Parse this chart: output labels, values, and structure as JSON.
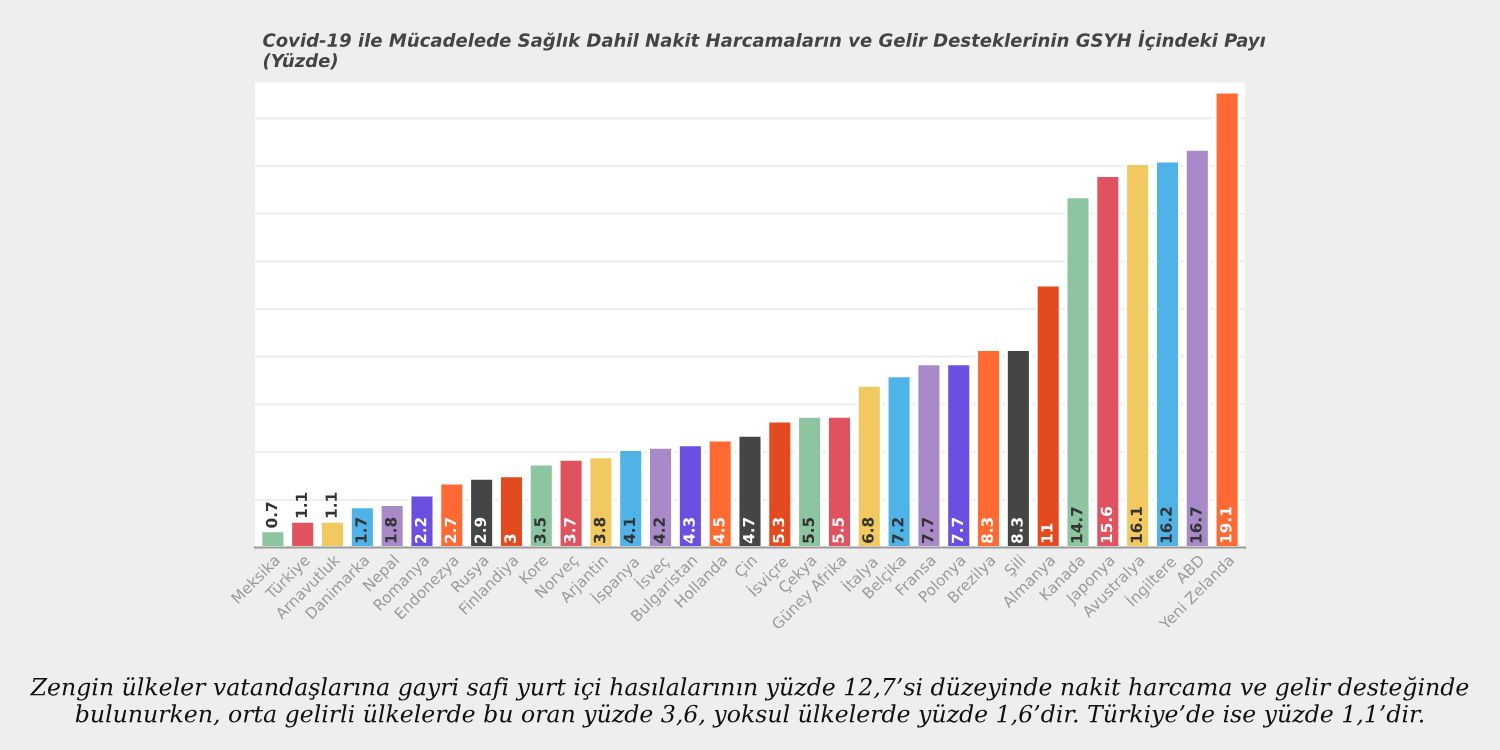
{
  "chart_data": {
    "type": "bar",
    "title": "Covid-19 ile Mücadelede Sağlık Dahil Nakit Harcamaların ve Gelir Desteklerinin GSYH İçindeki Payı\n(Yüzde)",
    "categories": [
      "Meksika",
      "Türkiye",
      "Arnavutluk",
      "Danimarka",
      "Nepal",
      "Romanya",
      "Endonezya",
      "Rusya",
      "Finlandiya",
      "Kore",
      "Norveç",
      "Arjantin",
      "İspanya",
      "İsveç",
      "Bulgaristan",
      "Hollanda",
      "Çin",
      "İsviçre",
      "Çekya",
      "Güney Afrika",
      "İtalya",
      "Belçika",
      "Fransa",
      "Polonya",
      "Brezilya",
      "Şili",
      "Almanya",
      "Kanada",
      "Japonya",
      "Avustralya",
      "İngiltere",
      "ABD",
      "Yeni Zelanda"
    ],
    "values": [
      0.7,
      1.1,
      1.1,
      1.7,
      1.8,
      2.2,
      2.7,
      2.9,
      3,
      3.5,
      3.7,
      3.8,
      4.1,
      4.2,
      4.3,
      4.5,
      4.7,
      5.3,
      5.5,
      5.5,
      6.8,
      7.2,
      7.7,
      7.7,
      8.3,
      8.3,
      11,
      14.7,
      15.6,
      16.1,
      16.2,
      16.7,
      19.1
    ],
    "colors": [
      "#8cc5a0",
      "#e0525e",
      "#f2c960",
      "#4fb3e8",
      "#a98ac8",
      "#6b4fe0",
      "#ff6a33",
      "#454545",
      "#e34a1f",
      "#8cc5a0",
      "#e0525e",
      "#f2c960",
      "#4fb3e8",
      "#a98ac8",
      "#6b4fe0",
      "#ff6a33",
      "#454545",
      "#e34a1f",
      "#8cc5a0",
      "#e0525e",
      "#f2c960",
      "#4fb3e8",
      "#a98ac8",
      "#6b4fe0",
      "#ff6a33",
      "#454545",
      "#e34a1f",
      "#8cc5a0",
      "#e0525e",
      "#f2c960",
      "#4fb3e8",
      "#a98ac8",
      "#ff6a33"
    ],
    "ylim": [
      0,
      19.5
    ],
    "yticks": [
      {
        "value": 2,
        "label": null
      },
      {
        "value": 4,
        "label": null
      },
      {
        "value": 6,
        "label": null
      },
      {
        "value": 8,
        "label": null
      },
      {
        "value": 10,
        "label": null
      },
      {
        "value": 12,
        "label": null
      },
      {
        "value": 14,
        "label": null
      },
      {
        "value": 16,
        "label": null
      },
      {
        "value": 18,
        "label": null
      }
    ],
    "tick_labels": "x",
    "grid": "y",
    "data_labels": true,
    "annotations": [
      "Zengin ülkeler vatandaşlarına gayri safi yurt içi hasılalarının yüzde 12,7’si düzeyinde nakit harcama ve gelir desteğinde bulunurken, orta gelirli ülkelerde bu oran yüzde 3,6, yoksul ülkelerde yüzde 1,6’dir. Türkiye’de ise yüzde 1,1’dir."
    ]
  }
}
